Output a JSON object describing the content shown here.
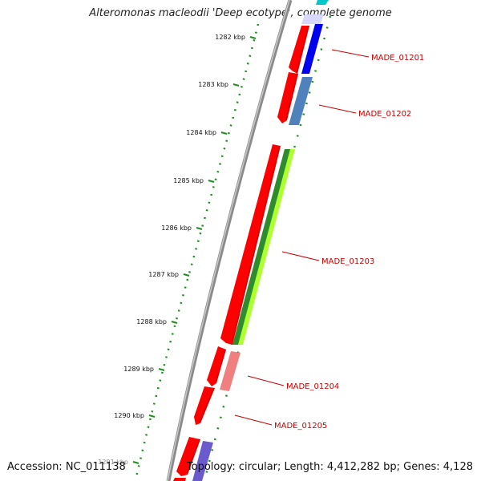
{
  "title": "Alteromonas macleodii 'Deep ecotype', complete genome",
  "footer": {
    "accession": "Accession: NC_011138",
    "summary": "Topology: circular; Length: 4,412,282 bp; Genes: 4,128"
  },
  "ticks": [
    "1282 kbp",
    "1283 kbp",
    "1284 kbp",
    "1285 kbp",
    "1286 kbp",
    "1287 kbp",
    "1288 kbp",
    "1289 kbp",
    "1290 kbp",
    "1291 kbp"
  ],
  "genes": [
    {
      "label": "MADE_01201",
      "color": "#0000ee"
    },
    {
      "label": "MADE_01202",
      "color": "#4f81bd"
    },
    {
      "label": "MADE_01203",
      "color": "#2e8b2e"
    },
    {
      "label": "MADE_01204",
      "color": "#f08080"
    },
    {
      "label": "MADE_01205",
      "color": "#ff0000"
    }
  ],
  "colors": {
    "cds_forward": "#ff0000",
    "backbone": "#8a8a8a",
    "ticks": "#228b22",
    "cyan": "#00c8c8",
    "lime": "#adff2f",
    "purple": "#6a5acd",
    "label": "#cc0000"
  }
}
